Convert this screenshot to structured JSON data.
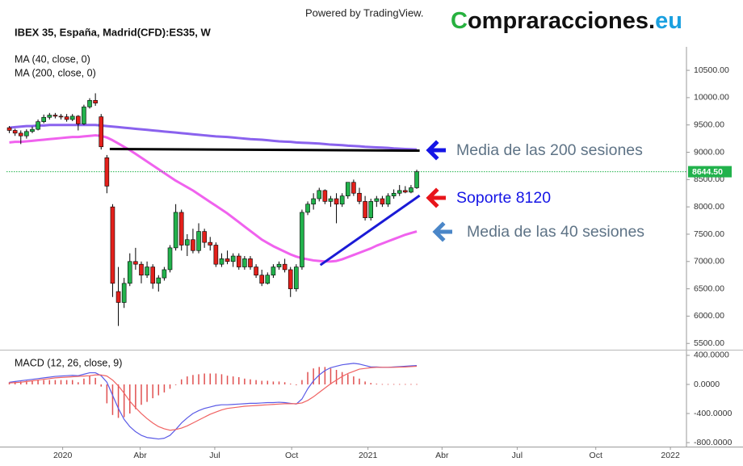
{
  "header": {
    "powered_by": "Powered by TradingView.",
    "logo": {
      "initial": "C",
      "main": "ompraracciones.",
      "suffix": "eu"
    }
  },
  "chart_data": [
    {
      "type": "candlestick",
      "title": "IBEX 35, España, Madrid(CFD):ES35, W",
      "open": [
        9450,
        9400,
        9350,
        9300,
        9380,
        9420,
        9560,
        9640,
        9680,
        9660,
        9650,
        9600,
        9660,
        9520,
        9830,
        9950,
        9650,
        8900,
        8000,
        6450,
        6250,
        6600,
        7000,
        6950,
        6750,
        6900,
        6600,
        6700,
        6850,
        7250,
        7900,
        7300,
        7400,
        7200,
        7550,
        7350,
        7300,
        6950,
        7050,
        7000,
        7100,
        6900,
        7050,
        6900,
        6750,
        6600,
        6750,
        6900,
        6950,
        6850,
        6500,
        6900,
        7900,
        8050,
        8150,
        8300,
        8100,
        8150,
        8050,
        8200,
        8450,
        8250,
        8100,
        7800,
        8100,
        8150,
        8050,
        8200,
        8250,
        8300,
        8270,
        8350
      ],
      "high": [
        9480,
        9430,
        9400,
        9420,
        9470,
        9600,
        9690,
        9720,
        9720,
        9700,
        9700,
        9700,
        9680,
        9870,
        9990,
        10080,
        9700,
        8950,
        8050,
        6900,
        6700,
        7150,
        7250,
        7000,
        7000,
        6950,
        6750,
        6900,
        7300,
        8050,
        7950,
        7500,
        7600,
        7700,
        7600,
        7450,
        7350,
        7150,
        7200,
        7150,
        7150,
        7100,
        7100,
        6950,
        6850,
        6800,
        6950,
        7000,
        7050,
        6900,
        6950,
        7950,
        8100,
        8250,
        8350,
        8320,
        8200,
        8250,
        8250,
        8450,
        8500,
        8350,
        8200,
        8150,
        8200,
        8200,
        8250,
        8320,
        8400,
        8380,
        8400,
        8680
      ],
      "low": [
        9350,
        9300,
        9150,
        9250,
        9350,
        9400,
        9530,
        9600,
        9620,
        9600,
        9560,
        9570,
        9400,
        9500,
        9800,
        9850,
        9050,
        8250,
        6350,
        5820,
        6150,
        6550,
        6850,
        6600,
        6700,
        6500,
        6450,
        6650,
        6800,
        7200,
        7200,
        7100,
        7150,
        7150,
        7250,
        7200,
        6900,
        6900,
        6950,
        6900,
        6850,
        6850,
        6850,
        6700,
        6550,
        6580,
        6700,
        6850,
        6800,
        6350,
        6450,
        6850,
        7850,
        7950,
        8100,
        8050,
        8000,
        7700,
        8000,
        8150,
        8200,
        8050,
        7750,
        7750,
        8000,
        8000,
        8000,
        8150,
        8200,
        8250,
        8250,
        8330
      ],
      "close": [
        9400,
        9350,
        9300,
        9380,
        9420,
        9560,
        9640,
        9680,
        9660,
        9650,
        9600,
        9660,
        9520,
        9830,
        9950,
        9900,
        9100,
        8380,
        6600,
        6250,
        6600,
        7000,
        6950,
        6750,
        6900,
        6600,
        6700,
        6850,
        7250,
        7900,
        7300,
        7400,
        7200,
        7550,
        7350,
        7300,
        6950,
        7050,
        7000,
        7100,
        6900,
        7050,
        6900,
        6750,
        6600,
        6750,
        6900,
        6950,
        6850,
        6500,
        6900,
        7900,
        8050,
        8150,
        8300,
        8100,
        8150,
        8050,
        8200,
        8450,
        8250,
        8100,
        7800,
        8100,
        8150,
        8050,
        8200,
        8250,
        8300,
        8270,
        8350,
        8644.5
      ],
      "up_color": "#22b24c",
      "down_color": "#e3201b",
      "series": [
        {
          "name": "MA (40, close, 0)",
          "color": "#f062ee",
          "values": [
            9180,
            9190,
            9190,
            9200,
            9210,
            9220,
            9230,
            9240,
            9250,
            9260,
            9270,
            9280,
            9280,
            9290,
            9300,
            9310,
            9300,
            9270,
            9220,
            9160,
            9100,
            9040,
            8970,
            8900,
            8830,
            8760,
            8690,
            8620,
            8550,
            8480,
            8420,
            8360,
            8300,
            8230,
            8160,
            8090,
            8020,
            7950,
            7880,
            7800,
            7720,
            7640,
            7560,
            7480,
            7400,
            7340,
            7280,
            7230,
            7180,
            7130,
            7090,
            7060,
            7040,
            7020,
            7010,
            7000,
            7000,
            7010,
            7040,
            7080,
            7120,
            7160,
            7200,
            7240,
            7290,
            7330,
            7370,
            7410,
            7450,
            7490,
            7520,
            7550
          ]
        },
        {
          "name": "MA (200, close, 0)",
          "color": "#8a62ee",
          "values": [
            9450,
            9460,
            9470,
            9480,
            9480,
            9490,
            9490,
            9500,
            9500,
            9500,
            9500,
            9500,
            9500,
            9500,
            9500,
            9500,
            9490,
            9480,
            9470,
            9460,
            9450,
            9440,
            9430,
            9420,
            9410,
            9400,
            9390,
            9380,
            9370,
            9360,
            9350,
            9340,
            9330,
            9320,
            9310,
            9300,
            9290,
            9285,
            9280,
            9270,
            9260,
            9250,
            9240,
            9235,
            9230,
            9220,
            9210,
            9200,
            9195,
            9190,
            9180,
            9175,
            9170,
            9165,
            9160,
            9150,
            9140,
            9135,
            9130,
            9120,
            9115,
            9110,
            9100,
            9095,
            9090,
            9085,
            9080,
            9070,
            9065,
            9060,
            9055,
            9050
          ]
        }
      ],
      "last_value_label": "8644.50",
      "last_value_color": "#22b24c",
      "xlim": [
        -0.5,
        118
      ],
      "ylim": [
        5400,
        10930
      ],
      "yticks": [
        {
          "value": 5500,
          "label": "5500.00"
        },
        {
          "value": 6000,
          "label": "6000.00"
        },
        {
          "value": 6500,
          "label": "6500.00"
        },
        {
          "value": 7000,
          "label": "7000.00"
        },
        {
          "value": 7500,
          "label": "7500.00"
        },
        {
          "value": 8000,
          "label": "8000.00"
        },
        {
          "value": 8500,
          "label": "8500.00"
        },
        {
          "value": 9000,
          "label": "9000.00"
        },
        {
          "value": 9500,
          "label": "9500.00"
        },
        {
          "value": 10000,
          "label": "10000.00"
        },
        {
          "value": 10500,
          "label": "10500.00"
        }
      ],
      "lines": [
        {
          "color": "#000000",
          "x": [
            17.5,
            71.5
          ],
          "y": [
            9060,
            9030
          ]
        },
        {
          "color": "#1a1ad6",
          "x": [
            54.2,
            71.5
          ],
          "y": [
            6935,
            8207
          ]
        }
      ],
      "annotations": [
        {
          "text": "Media de las 200 sesiones",
          "color": "#5e7386",
          "arrow_color": "#1515e6"
        },
        {
          "text": "Soporte 8120",
          "color": "#1515e6",
          "arrow_color": "#e8151b"
        },
        {
          "text": "Media de las 40 sesiones",
          "color": "#5e7386",
          "arrow_color": "#4a86c8"
        }
      ]
    },
    {
      "type": "macd",
      "title": "MACD (12, 26, close, 9)",
      "histogram": {
        "color": "#e05050",
        "values": [
          30,
          40,
          40,
          50,
          50,
          60,
          60,
          60,
          60,
          60,
          60,
          60,
          30,
          80,
          120,
          90,
          -30,
          -260,
          -420,
          -460,
          -450,
          -400,
          -340,
          -280,
          -240,
          -190,
          -150,
          -110,
          -60,
          0,
          70,
          110,
          130,
          140,
          150,
          150,
          150,
          140,
          120,
          110,
          100,
          80,
          70,
          60,
          50,
          50,
          40,
          40,
          30,
          10,
          -10,
          60,
          170,
          220,
          240,
          240,
          220,
          200,
          170,
          140,
          110,
          80,
          40,
          20,
          10,
          5,
          5,
          5,
          5,
          5,
          5,
          5
        ]
      },
      "series": [
        {
          "color": "#5a5ae6",
          "values": [
            30,
            40,
            50,
            60,
            70,
            80,
            90,
            100,
            110,
            115,
            120,
            125,
            120,
            140,
            160,
            160,
            120,
            30,
            -150,
            -330,
            -480,
            -580,
            -650,
            -700,
            -730,
            -740,
            -750,
            -740,
            -700,
            -620,
            -530,
            -460,
            -400,
            -360,
            -330,
            -310,
            -290,
            -280,
            -280,
            -275,
            -270,
            -265,
            -260,
            -260,
            -255,
            -250,
            -250,
            -245,
            -250,
            -260,
            -270,
            -200,
            -60,
            50,
            130,
            190,
            230,
            250,
            270,
            280,
            290,
            280,
            260,
            240,
            240,
            235,
            235,
            240,
            245,
            250,
            255,
            260
          ]
        },
        {
          "color": "#f06262",
          "values": [
            20,
            25,
            30,
            40,
            50,
            60,
            70,
            80,
            90,
            95,
            100,
            105,
            110,
            115,
            120,
            130,
            130,
            115,
            60,
            -20,
            -120,
            -230,
            -320,
            -400,
            -470,
            -530,
            -580,
            -610,
            -630,
            -620,
            -600,
            -570,
            -530,
            -490,
            -450,
            -410,
            -380,
            -350,
            -330,
            -320,
            -310,
            -300,
            -295,
            -290,
            -285,
            -280,
            -275,
            -270,
            -265,
            -265,
            -265,
            -255,
            -220,
            -170,
            -110,
            -50,
            10,
            60,
            110,
            150,
            180,
            210,
            220,
            230,
            235,
            235,
            235,
            235,
            238,
            240,
            245,
            250
          ]
        }
      ],
      "xlim": [
        -0.5,
        118
      ],
      "xticks": [
        {
          "value": 9.3,
          "label": "2020"
        },
        {
          "value": 22.8,
          "label": "Abr"
        },
        {
          "value": 35.8,
          "label": "Jul"
        },
        {
          "value": 49.2,
          "label": "Oct"
        },
        {
          "value": 62.5,
          "label": "2021"
        },
        {
          "value": 75.4,
          "label": "Abr"
        },
        {
          "value": 88.5,
          "label": "Jul"
        },
        {
          "value": 102.2,
          "label": "Oct"
        },
        {
          "value": 115.2,
          "label": "2022"
        }
      ],
      "ylim": [
        -855,
        444
      ],
      "yticks": [
        {
          "value": 400,
          "label": "400.0000"
        },
        {
          "value": 0,
          "label": "0.0000"
        },
        {
          "value": -400,
          "label": "-400.0000"
        },
        {
          "value": -800,
          "label": "-800.0000"
        }
      ]
    }
  ]
}
